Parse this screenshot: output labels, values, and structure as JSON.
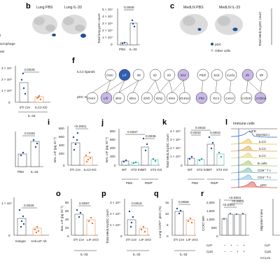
{
  "panel_letters": {
    "b": "b",
    "c": "c",
    "f": "f",
    "i": "i",
    "j": "j",
    "k": "k",
    "l": "l",
    "o": "o",
    "p": "p",
    "q": "q",
    "r": "r"
  },
  "left_fragments": {
    "frag1": "t",
    "frag2": "acrophage",
    "frag3": "ate"
  },
  "umap_b": {
    "left_title": "Lung PBS",
    "right_title": "Lung IL-33"
  },
  "umap_c": {
    "left_title": "MedLN PBS",
    "right_title": "MedLN IL-33"
  },
  "legend_c": {
    "pdc": "pDC",
    "other": "Other cells"
  },
  "colors": {
    "pdc": "#1f4e9c",
    "other": "#cfcfcf",
    "accent_blue": "#2f5fb3",
    "orange": "#e07b39",
    "teal": "#2aa198",
    "purple": "#7b5ea7",
    "lilac": "#c9b8e8"
  },
  "panel_b": {
    "ylabel": "Total lung pDC count",
    "yticks": [
      "5 × 10⁴",
      "4 × 10⁴",
      "3 × 10⁴",
      "2 × 10⁴",
      "1 × 10⁴",
      "0"
    ],
    "categories": [
      "PBS",
      "IL-33"
    ],
    "pvalue": "0.0006"
  },
  "panel_c_right": {
    "ylabel": "Total MedLN pDC count"
  },
  "panel_f": {
    "row1_label": "ILC2 ligands",
    "row2_label": "pDC receptors",
    "groups": [
      {
        "ligands": [
          "Osm",
          "Lif",
          "Il6"
        ],
        "receptors": [
          "Osmr",
          "Lifr",
          "Il6st",
          "Il6ra"
        ]
      },
      {
        "ligands": [
          "Il2",
          "Il4",
          "Il13"
        ],
        "receptors": [
          "Il2rb",
          "Il2rg",
          "Il4ra",
          "Il13ra1"
        ]
      },
      {
        "ligands": [
          "Flt3l",
          "Xcl1",
          "Cxcl1"
        ],
        "receptors": [
          "Flt3",
          "Xcr1",
          "Cxcr2"
        ]
      },
      {
        "ligands": [
          "Il5",
          "Il9"
        ],
        "receptors": [
          "Csf2rb",
          "Csf2ra"
        ]
      }
    ]
  },
  "panel_h": {
    "yticks": [
      "3 × 10⁴",
      "2 × 10⁴",
      "1 × 10⁴",
      "0"
    ],
    "categories": [
      "Il7r Cre",
      "ILC2 KO"
    ],
    "group": "IL-33",
    "pvalue": "0.0026"
  },
  "panel_h2": {
    "categories": [
      "PBS",
      "IL-33"
    ],
    "pvalue": "0.0193"
  },
  "panel_i": {
    "ylabel": "BAL LIF (pg ml⁻¹)",
    "yticks": [
      "800",
      "600",
      "400",
      "200",
      "0"
    ],
    "categories": [
      "Il7r Cre",
      "ILC2 KO"
    ],
    "pvalue": "<0.0001"
  },
  "panel_j": {
    "ylabel": "BAL LIF (pg ml⁻¹)",
    "yticks": [
      "800",
      "600",
      "400",
      "200",
      "0"
    ],
    "categories": [
      "WT",
      "ST2 KO",
      "WT",
      "ST2 KO"
    ],
    "groups": [
      "PBS",
      "RWP"
    ],
    "pvalues": [
      "0.0267",
      "0.0036"
    ]
  },
  "panel_k": {
    "ylabel": "Total MedLN pDC count",
    "yticks": [
      "4 × 10⁴",
      "3 × 10⁴",
      "2 × 10⁴",
      "1 × 10⁴",
      "0"
    ],
    "categories": [
      "WT",
      "ST2 KO",
      "WT",
      "ST2 KO"
    ],
    "groups": [
      "PBS",
      "RWP"
    ],
    "pvalues": [
      "0.0032",
      "0.0033",
      "0.0003"
    ]
  },
  "panel_l": {
    "title": "Immune cells",
    "marker": "LIFR",
    "rows": [
      "Myeloid c",
      "ILC3",
      "ILC2",
      "ILC1",
      "B cells",
      "CD8⁺ T c",
      "CD4⁺ T c",
      "pDC"
    ],
    "row_colors": [
      "#3b6fc4",
      "#e8c14a",
      "#e6a04a",
      "#d9d36b",
      "#9fc66a",
      "#6cb9b0",
      "#7fb8e0",
      "#d9534f"
    ]
  },
  "panel_n": {
    "yticks": [
      "1 × 10⁴",
      "0"
    ],
    "categories": [
      "Isotype",
      "Anti-LIF Ab"
    ],
    "pvalue": "0.0025"
  },
  "panel_o": {
    "ylabel": "BAL LIF (pg ml⁻¹)",
    "yticks": [
      "80",
      "60",
      "40",
      "20",
      "0"
    ],
    "categories": [
      "Il7r Cre",
      "LIF cKO"
    ],
    "group": "IL-33",
    "pvalue": "0.0087"
  },
  "panel_p": {
    "ylabel": "Total MedLN pDC count",
    "yticks": [
      "3 × 10⁴",
      "2 × 10⁴",
      "1 × 10⁴",
      "0"
    ],
    "categories": [
      "Il7r Cre",
      "LIF cKO"
    ],
    "group": "IL-33",
    "pvalue": "0.0018"
  },
  "panel_q": {
    "ylabel": "Lung CCR7⁺ pDC (%)",
    "yticks": [
      "15",
      "10",
      "5",
      "0"
    ],
    "categories": [
      "Il7r Cre",
      "LIF cKO"
    ],
    "group": "IL-33",
    "pvalue": "0.0058"
  },
  "panel_r": {
    "ylabel": "CCR7 MFI",
    "yticks": [
      "2,000",
      "1,500",
      "1,000",
      "500",
      "0"
    ],
    "row_labels": [
      "rLIF",
      "CpG"
    ],
    "pvalues": [
      "<0.0001",
      "<0.0001",
      "<0.0001"
    ]
  },
  "panel_s": {
    "ylabel": "Migration index",
    "row_labels": [
      "rLIF",
      "CpG",
      "CCL21"
    ]
  }
}
